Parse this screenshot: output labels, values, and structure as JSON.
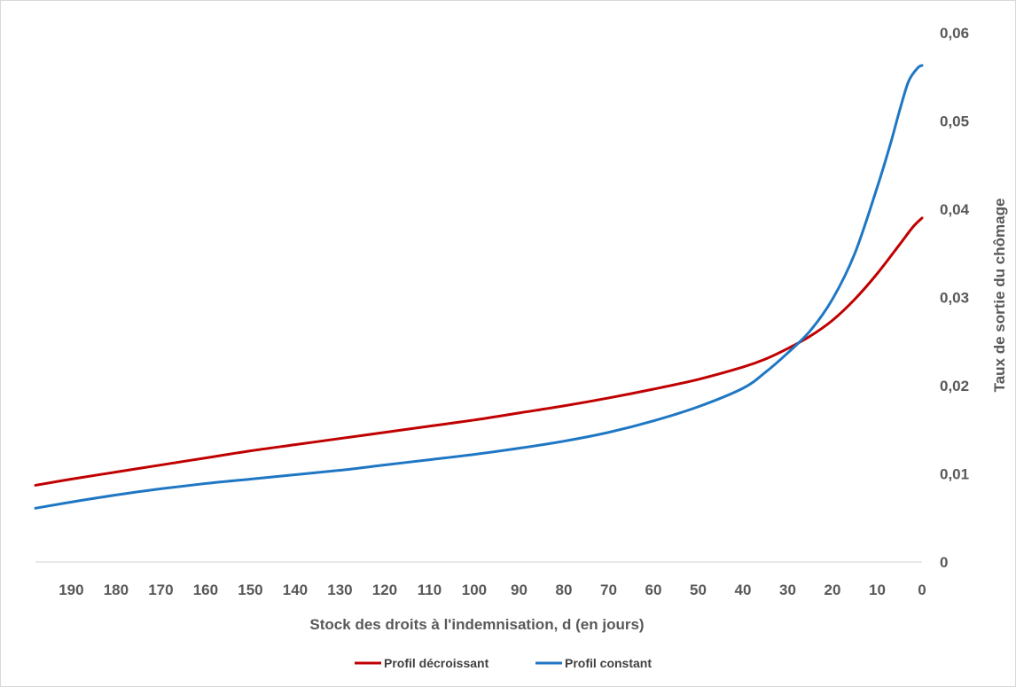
{
  "chart_data": {
    "type": "line",
    "title": "",
    "xlabel": "Stock des droits à l'indemnisation, d (en jours)",
    "ylabel": "Taux de sortie du chômage",
    "xlim": [
      198,
      0
    ],
    "ylim": [
      0,
      0.06
    ],
    "x_reversed": true,
    "y_axis_side": "right",
    "x_ticks": [
      190,
      180,
      170,
      160,
      150,
      140,
      130,
      120,
      110,
      100,
      90,
      80,
      70,
      60,
      50,
      40,
      30,
      20,
      10,
      0
    ],
    "y_ticks": [
      {
        "value": 0,
        "label": "0"
      },
      {
        "value": 0.01,
        "label": "0,01"
      },
      {
        "value": 0.02,
        "label": "0,02"
      },
      {
        "value": 0.03,
        "label": "0,03"
      },
      {
        "value": 0.04,
        "label": "0,04"
      },
      {
        "value": 0.05,
        "label": "0,05"
      },
      {
        "value": 0.06,
        "label": "0,06"
      }
    ],
    "grid": false,
    "legend_position": "bottom",
    "series": [
      {
        "name": "Profil décroissant",
        "color": "#c00000",
        "x": [
          198,
          190,
          180,
          170,
          160,
          150,
          140,
          130,
          120,
          110,
          100,
          90,
          80,
          70,
          60,
          50,
          40,
          35,
          30,
          25,
          20,
          15,
          10,
          5,
          2,
          0
        ],
        "y": [
          0.0087,
          0.0094,
          0.0102,
          0.011,
          0.0118,
          0.0126,
          0.0133,
          0.014,
          0.0147,
          0.0154,
          0.0161,
          0.0169,
          0.0177,
          0.0186,
          0.0196,
          0.0207,
          0.0221,
          0.023,
          0.0242,
          0.0256,
          0.0274,
          0.0298,
          0.0327,
          0.036,
          0.038,
          0.039
        ]
      },
      {
        "name": "Profil constant",
        "color": "#1f77c4",
        "x": [
          198,
          190,
          180,
          170,
          160,
          150,
          140,
          130,
          120,
          110,
          100,
          90,
          80,
          70,
          60,
          50,
          40,
          35,
          30,
          25,
          20,
          15,
          10,
          7,
          5,
          3,
          1,
          0
        ],
        "y": [
          0.0061,
          0.0068,
          0.0076,
          0.0083,
          0.0089,
          0.0094,
          0.0099,
          0.0104,
          0.011,
          0.0116,
          0.0122,
          0.0129,
          0.0137,
          0.0147,
          0.016,
          0.0176,
          0.0197,
          0.0215,
          0.0237,
          0.0262,
          0.0298,
          0.035,
          0.0425,
          0.0475,
          0.0512,
          0.0545,
          0.056,
          0.0563
        ]
      }
    ]
  }
}
